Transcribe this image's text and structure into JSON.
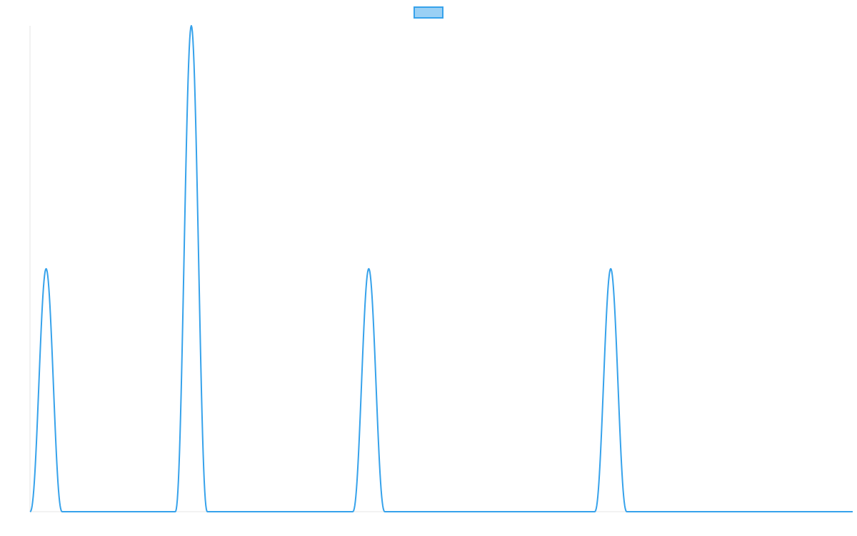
{
  "chart_data": {
    "type": "line",
    "title": "",
    "xlabel": "",
    "ylabel": "",
    "x_range": [
      0,
      51
    ],
    "y_range": [
      0,
      2
    ],
    "grid": false,
    "legend": {
      "position": "top-center",
      "entries": [
        {
          "name": ""
        }
      ]
    },
    "series": [
      {
        "name": "",
        "color": "#36A2EB",
        "fill": "#9AD0F5",
        "peaks": [
          {
            "start": 0,
            "end": 2,
            "height": 1
          },
          {
            "start": 9,
            "end": 11,
            "height": 2
          },
          {
            "start": 20,
            "end": 22,
            "height": 1
          },
          {
            "start": 35,
            "end": 37,
            "height": 1
          }
        ]
      }
    ]
  }
}
